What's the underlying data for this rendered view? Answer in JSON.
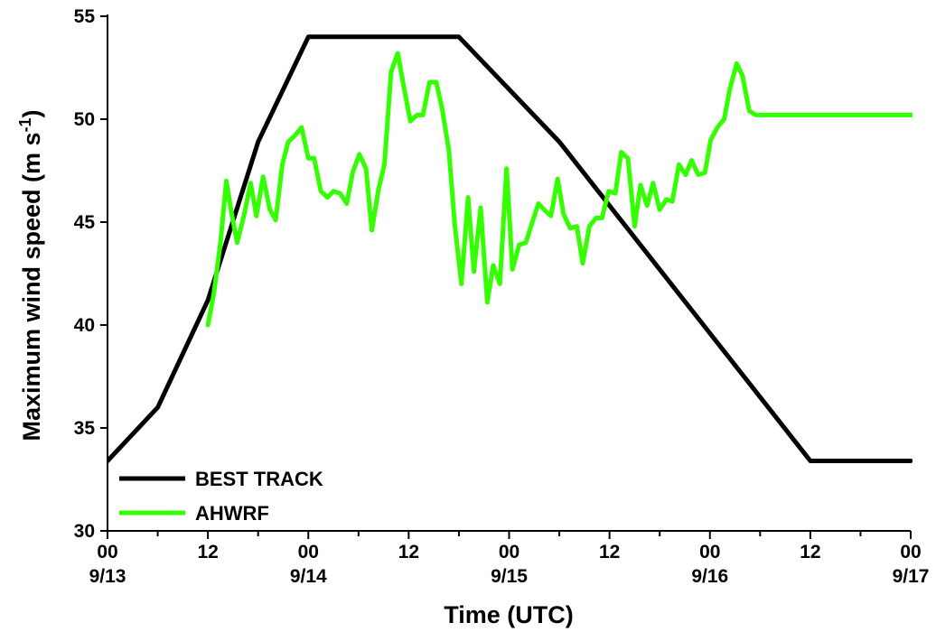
{
  "chart_data": {
    "type": "line",
    "title": "",
    "xlabel": "Time (UTC)",
    "ylabel_main": "Maximum wind speed (m s",
    "ylabel_sup": "-1",
    "ylabel_close": ")",
    "ylim": [
      30,
      55
    ],
    "yticks": [
      30,
      35,
      40,
      45,
      50,
      55
    ],
    "ytick_labels": [
      "30",
      "35",
      "40",
      "45",
      "50",
      "55"
    ],
    "xlim": [
      0,
      96
    ],
    "x_unit": "hours since 00 UTC 9/13",
    "x_major_ticks": [
      {
        "x": 0,
        "hour": "00",
        "date": "9/13"
      },
      {
        "x": 12,
        "hour": "12",
        "date": ""
      },
      {
        "x": 24,
        "hour": "00",
        "date": "9/14"
      },
      {
        "x": 36,
        "hour": "12",
        "date": ""
      },
      {
        "x": 48,
        "hour": "00",
        "date": "9/15"
      },
      {
        "x": 60,
        "hour": "12",
        "date": ""
      },
      {
        "x": 72,
        "hour": "00",
        "date": "9/16"
      },
      {
        "x": 84,
        "hour": "12",
        "date": ""
      },
      {
        "x": 96,
        "hour": "00",
        "date": "9/17"
      }
    ],
    "x_minor_ticks": [
      6,
      18,
      30,
      42,
      54,
      66,
      78,
      90
    ],
    "legend_position": "bottom-left",
    "series": [
      {
        "name": "BEST TRACK",
        "color": "#000000",
        "x": [
          0,
          6,
          12,
          18,
          24,
          42,
          54,
          84,
          96
        ],
        "y": [
          33.4,
          36.0,
          41.2,
          48.9,
          54.0,
          54.0,
          48.9,
          33.4,
          33.4
        ]
      },
      {
        "name": "AHWRF",
        "color": "#33ff00",
        "x": [
          12,
          12.7,
          13.5,
          14.2,
          14.8,
          15.5,
          16.3,
          17.1,
          17.8,
          18.6,
          19.4,
          20.1,
          20.9,
          21.6,
          22.4,
          23.2,
          24,
          24.7,
          25.5,
          26.3,
          27,
          27.8,
          28.6,
          29.3,
          30.1,
          30.9,
          31.6,
          32.4,
          33.1,
          33.9,
          34.7,
          35.4,
          36.2,
          37,
          37.7,
          38.5,
          39.3,
          40,
          40.8,
          41.5,
          42.3,
          43.1,
          43.8,
          44.6,
          45.4,
          46.1,
          46.9,
          47.7,
          48.4,
          49.2,
          50,
          50.7,
          51.5,
          52.2,
          53,
          53.8,
          54.5,
          55.3,
          56.1,
          56.8,
          57.6,
          58.4,
          59.1,
          59.9,
          60.7,
          61.4,
          62.2,
          63,
          63.7,
          64.5,
          65.2,
          66,
          66.8,
          67.5,
          68.3,
          69.1,
          69.8,
          70.6,
          71.4,
          72.1,
          72.9,
          73.7,
          74.4,
          75.2,
          75.9,
          76.7,
          77.5,
          78.2,
          79,
          79.8,
          80.5,
          81.3,
          82.1,
          82.8,
          83.6,
          84.4,
          85.1,
          85.9,
          86.6,
          87.4,
          88.2,
          88.9,
          89.7,
          90.5,
          91.2,
          92,
          92.8,
          93.5,
          94.3,
          95.1,
          95.8,
          96.4
        ],
        "y": [
          40.0,
          41.5,
          44.0,
          47.0,
          45.5,
          44.0,
          45.3,
          46.9,
          45.3,
          47.2,
          45.6,
          45.1,
          47.8,
          48.9,
          49.2,
          49.6,
          48.1,
          48.1,
          46.5,
          46.2,
          46.5,
          46.4,
          45.9,
          47.4,
          48.3,
          47.6,
          44.6,
          46.6,
          47.8,
          52.3,
          53.2,
          51.6,
          49.9,
          50.2,
          50.2,
          51.8,
          51.8,
          50.5,
          48.5,
          44.9,
          42.0,
          46.2,
          42.6,
          45.7,
          41.1,
          42.9,
          42.0,
          47.6,
          42.7,
          43.9,
          44.0,
          44.9,
          45.9,
          45.6,
          45.3,
          47.1,
          45.4,
          44.7,
          44.8,
          43.0,
          44.8,
          45.2,
          45.2,
          46.5,
          46.4,
          48.4,
          48.1,
          44.8,
          46.8,
          45.8,
          46.9,
          45.6,
          46.1,
          46.0,
          47.8,
          47.3,
          48.0,
          47.3,
          47.4,
          49.0,
          49.6,
          50.0,
          51.5,
          52.7,
          52.1,
          50.4,
          50.2,
          50.2,
          50.2,
          50.2,
          50.2,
          50.2,
          50.2,
          50.2,
          50.2,
          50.2,
          50.2,
          50.2,
          50.2,
          50.2,
          50.2,
          50.2,
          50.2,
          50.2,
          50.2,
          50.2,
          50.2,
          50.2,
          50.2,
          50.2,
          50.2,
          50.2
        ]
      }
    ]
  }
}
